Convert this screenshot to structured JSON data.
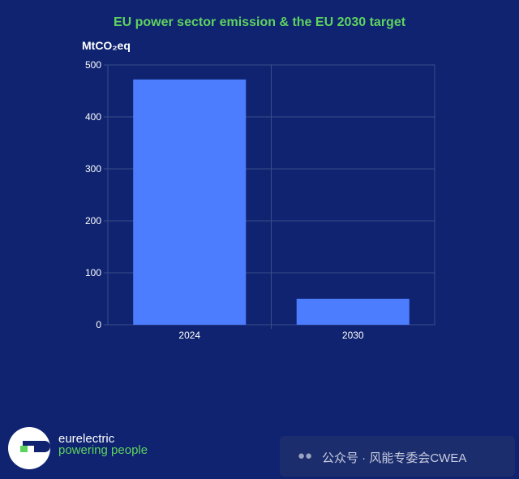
{
  "chart_data": {
    "type": "bar",
    "title": "EU power sector emission & the EU 2030 target",
    "ylabel": "MtCO₂eq",
    "xlabel": "",
    "categories": [
      "2024",
      "2030"
    ],
    "values": [
      472,
      50
    ],
    "ylim": [
      0,
      500
    ],
    "yticks": [
      0,
      100,
      200,
      300,
      400,
      500
    ],
    "grid": true,
    "bar_color": "#4d7dff",
    "background": "#0f2370",
    "grid_color": "#3a4c8c",
    "title_color": "#5fd35f"
  },
  "branding": {
    "name": "eurelectric",
    "tagline": "powering people",
    "accent": "#5fd35f"
  },
  "watermark": {
    "icon": "wechat-icon",
    "text": "公众号 · 风能专委会CWEA"
  }
}
